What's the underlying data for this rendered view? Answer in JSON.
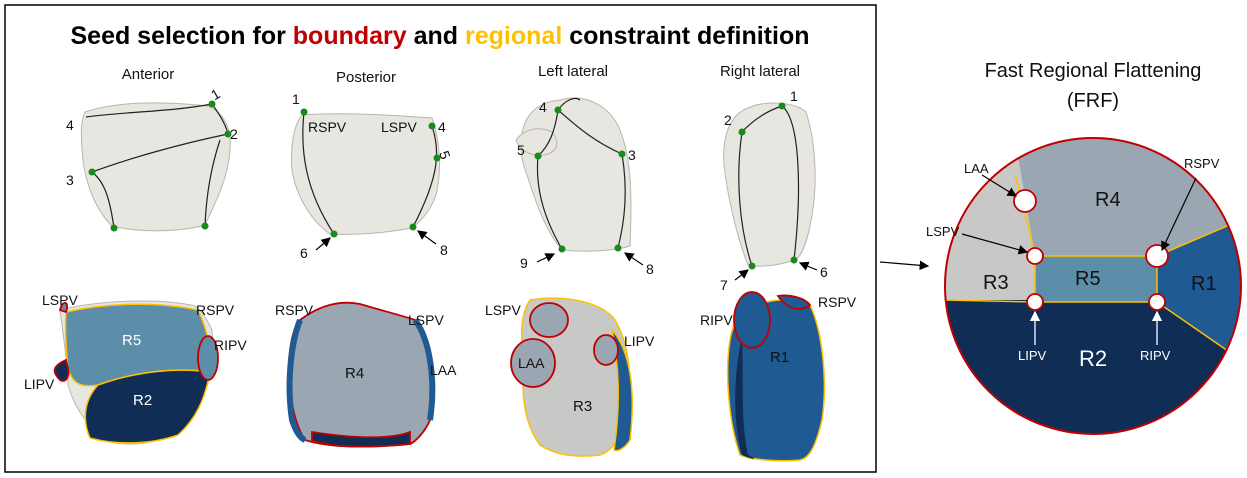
{
  "title": {
    "pre": "Seed selection for ",
    "boundary": "boundary",
    "mid": " and ",
    "regional": "regional",
    "post": " constraint definition"
  },
  "colors": {
    "boundary": "#c00000",
    "regional": "#ffc000",
    "tissue": "#e8e6e0",
    "tissue_outline": "#b8b5ad",
    "seed": "#1a8a1a",
    "R1": "#1f5a92",
    "R2": "#0f2d55",
    "R3": "#c8c8c6",
    "R4": "#9aa6b2",
    "R5": "#5c8eaa",
    "seed_path": "#222222"
  },
  "views": {
    "anterior": "Anterior",
    "posterior": "Posterior",
    "left_lateral": "Left lateral",
    "right_lateral": "Right lateral"
  },
  "seeds": {
    "s1": "1",
    "s2": "2",
    "s3": "3",
    "s4": "4",
    "s5": "5",
    "s6": "6",
    "s7": "7",
    "s8": "8",
    "s9": "9"
  },
  "veins": {
    "LSPV": "LSPV",
    "RSPV": "RSPV",
    "LIPV": "LIPV",
    "RIPV": "RIPV",
    "LAA": "LAA"
  },
  "regions": {
    "R1": "R1",
    "R2": "R2",
    "R3": "R3",
    "R4": "R4",
    "R5": "R5"
  },
  "frf": {
    "title_line1": "Fast Regional Flattening",
    "title_line2": "(FRF)"
  }
}
